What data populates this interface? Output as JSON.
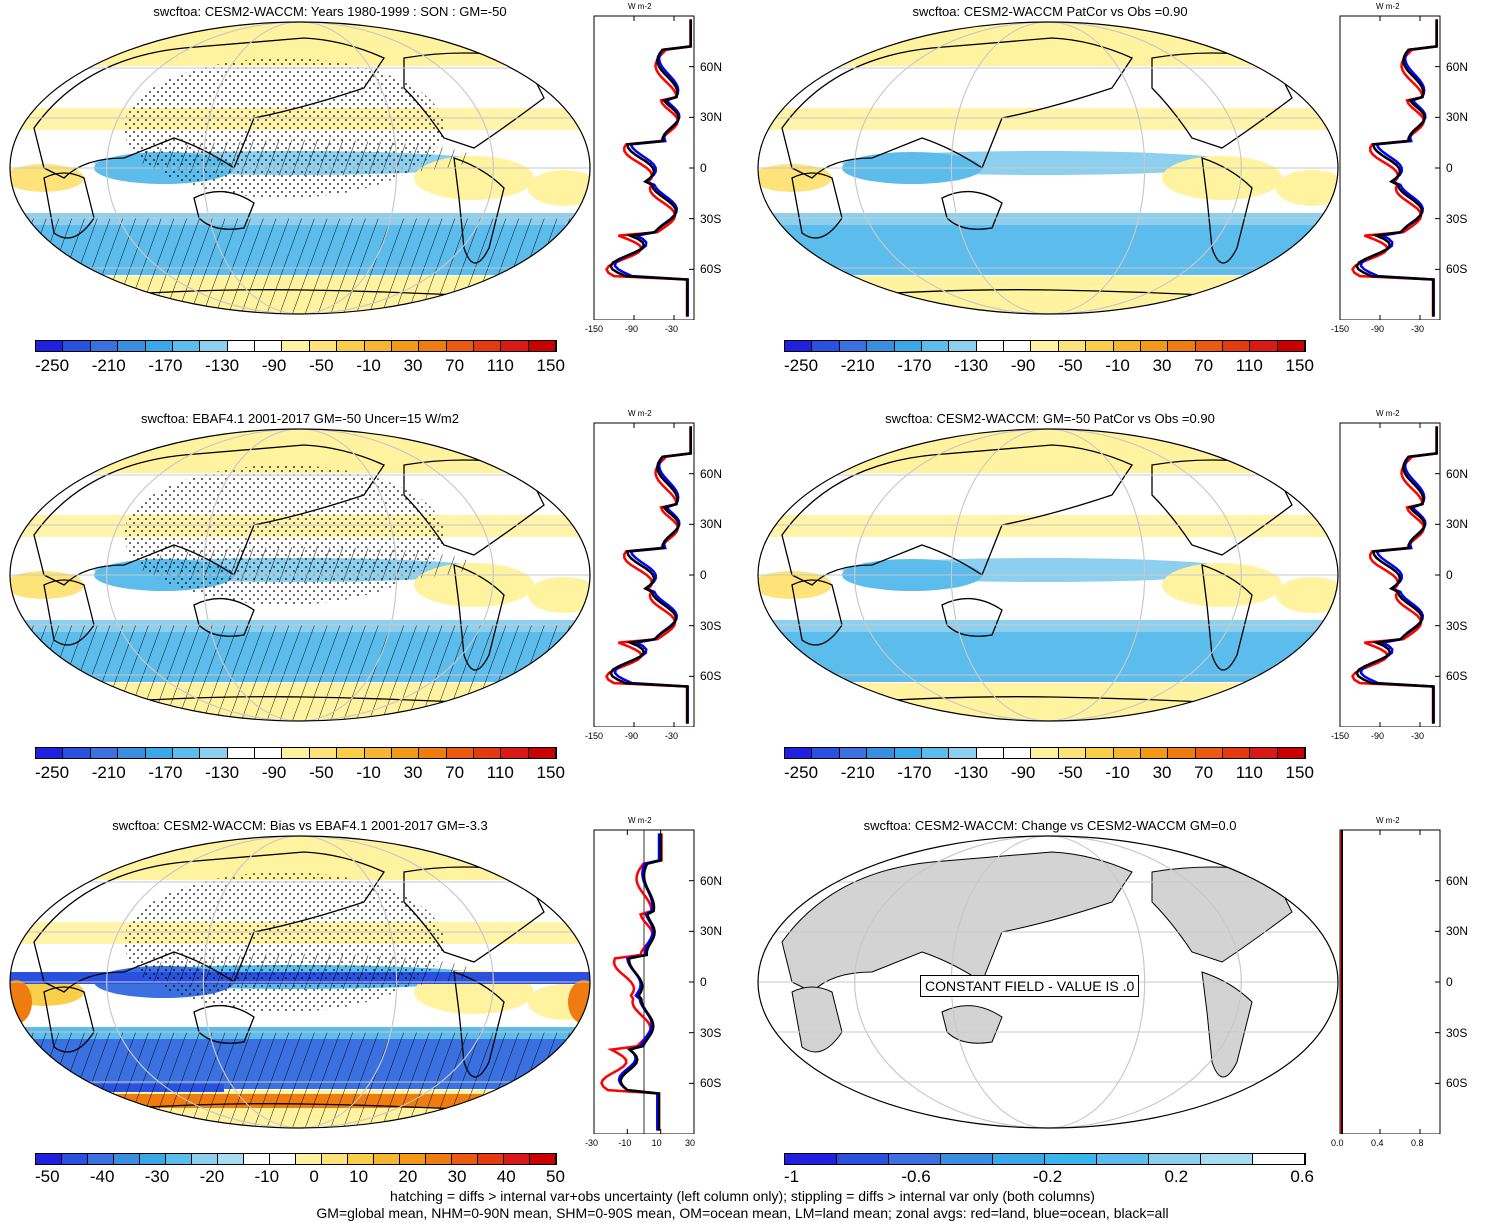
{
  "panels": [
    {
      "title": "swcftoa: CESM2-WACCM: Years 1980-1999 : SON : GM=-50",
      "kind": "model",
      "hatch": true,
      "stipple": true
    },
    {
      "title": "swcftoa: CESM2-WACCM PatCor vs Obs =0.90",
      "kind": "model",
      "hatch": false,
      "stipple": false
    },
    {
      "title": "swcftoa: EBAF4.1 2001-2017 GM=-50 Uncer=15 W/m2",
      "kind": "obs",
      "hatch": true,
      "stipple": true
    },
    {
      "title": "swcftoa: CESM2-WACCM: GM=-50 PatCor vs Obs =0.90",
      "kind": "model",
      "hatch": false,
      "stipple": false
    },
    {
      "title": "swcftoa: CESM2-WACCM: Bias vs EBAF4.1 2001-2017  GM=-3.3",
      "kind": "bias",
      "hatch": true,
      "stipple": true
    },
    {
      "title": "swcftoa: CESM2-WACCM: Change vs CESM2-WACCM GM=0.0",
      "kind": "constant",
      "hatch": false,
      "stipple": false
    }
  ],
  "constant_label": "CONSTANT FIELD - VALUE IS .0",
  "colorbars": {
    "main": {
      "labels": [
        "-250",
        "-210",
        "-170",
        "-130",
        "-90",
        "-50",
        "-10",
        "30",
        "70",
        "110",
        "150"
      ],
      "colors": [
        "#2020e0",
        "#2a50e0",
        "#3a70e0",
        "#3a8ee0",
        "#3aa8e8",
        "#5cbcec",
        "#8ccfee",
        "#ffffff",
        "#ffffff",
        "#fff3a0",
        "#fde37a",
        "#f9cf4a",
        "#f5b730",
        "#f29a18",
        "#ee7c10",
        "#ea5a10",
        "#e43a10",
        "#d91818",
        "#c80000"
      ]
    },
    "bias": {
      "labels": [
        "-50",
        "-40",
        "-30",
        "-20",
        "-10",
        "0",
        "10",
        "20",
        "30",
        "40",
        "50"
      ],
      "colors": [
        "#2020e0",
        "#2a50e0",
        "#3a70e0",
        "#3a8ee0",
        "#3aa8e8",
        "#5cbcec",
        "#8ccfee",
        "#a8dcf2",
        "#ffffff",
        "#ffffff",
        "#fff3a0",
        "#fde37a",
        "#f9cf4a",
        "#f5b730",
        "#f29a18",
        "#ee7c10",
        "#ea5a10",
        "#e43a10",
        "#d91818",
        "#c80000"
      ]
    },
    "change": {
      "labels": [
        "-1",
        "-0.6",
        "-0.2",
        "0.2",
        "0.6"
      ],
      "colors": [
        "#2020e0",
        "#2a50e0",
        "#3a70e0",
        "#3a8ee0",
        "#3aa8e8",
        "#3ab4ec",
        "#5cbcec",
        "#8ccfee",
        "#a8dcf2",
        "#ffffff"
      ]
    }
  },
  "zonal": {
    "unit": "W m-2",
    "lat_labels": [
      "60N",
      "30N",
      "0",
      "30S",
      "60S"
    ],
    "main_ticks": [
      "-150",
      "-90",
      "-30"
    ],
    "bias_ticks": [
      "-30",
      "-10",
      "10",
      "30"
    ],
    "change_ticks": [
      "0.0",
      "0.4",
      "0.8"
    ]
  },
  "footer": {
    "line1": "hatching = diffs > internal var+obs uncertainty (left column only); stippling = diffs > internal var only (both columns)",
    "line2": "GM=global mean, NHM=0-90N mean, SHM=0-90S mean, OM=ocean mean, LM=land mean; zonal avgs: red=land, blue=ocean, black=all"
  },
  "colors": {
    "land": "#ff0000",
    "ocean": "#0000ff",
    "all": "#000000",
    "grey_land": "#d3d3d3"
  }
}
